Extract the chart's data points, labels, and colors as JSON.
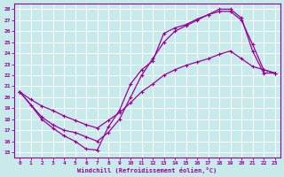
{
  "line_color": "#990099",
  "bg_color": "#c8eaea",
  "xlabel": "Windchill (Refroidissement éolien,°C)",
  "xmin": 0,
  "xmax": 23,
  "ymin": 15,
  "ymax": 28,
  "xticks": [
    0,
    1,
    2,
    3,
    4,
    5,
    6,
    7,
    8,
    9,
    10,
    11,
    12,
    13,
    14,
    15,
    16,
    17,
    18,
    19,
    20,
    21,
    22,
    23
  ],
  "yticks": [
    15,
    16,
    17,
    18,
    19,
    20,
    21,
    22,
    23,
    24,
    25,
    26,
    27,
    28
  ],
  "line1_x": [
    0,
    1,
    2,
    3,
    4,
    5,
    6,
    7,
    8,
    9,
    10,
    11,
    12,
    13,
    14,
    15,
    16,
    17,
    18,
    19,
    20,
    21,
    22,
    23
  ],
  "line1_y": [
    20.5,
    19.3,
    18.0,
    17.2,
    16.5,
    16.0,
    15.3,
    15.2,
    17.3,
    18.8,
    21.2,
    22.5,
    23.3,
    25.8,
    26.3,
    26.6,
    27.1,
    27.5,
    28.0,
    28.0,
    27.2,
    24.2,
    22.2,
    22.2
  ],
  "line2_x": [
    0,
    1,
    2,
    3,
    4,
    5,
    6,
    7,
    8,
    9,
    10,
    11,
    12,
    13,
    14,
    15,
    16,
    17,
    18,
    19,
    20,
    21,
    22,
    23
  ],
  "line2_y": [
    20.5,
    19.8,
    19.2,
    18.8,
    18.3,
    17.9,
    17.5,
    17.2,
    17.9,
    18.6,
    19.5,
    20.5,
    21.2,
    22.0,
    22.5,
    22.9,
    23.2,
    23.5,
    23.9,
    24.2,
    23.5,
    22.8,
    22.5,
    22.2
  ],
  "line3_x": [
    0,
    2,
    3,
    4,
    5,
    6,
    7,
    8,
    9,
    10,
    11,
    12,
    13,
    14,
    15,
    16,
    17,
    18,
    19,
    20,
    21,
    22,
    23
  ],
  "line3_y": [
    20.5,
    18.2,
    17.5,
    17.0,
    16.8,
    16.4,
    16.0,
    16.8,
    18.0,
    20.0,
    22.0,
    23.5,
    25.0,
    26.0,
    26.5,
    27.0,
    27.5,
    27.8,
    27.8,
    27.0,
    24.8,
    22.5,
    22.2
  ]
}
